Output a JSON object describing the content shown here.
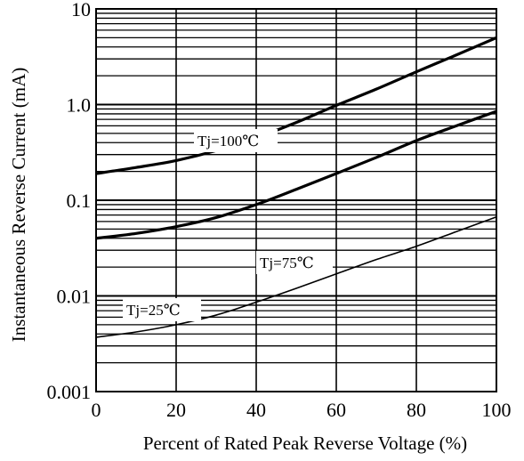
{
  "chart_data": {
    "type": "line",
    "title": "",
    "xlabel": "Percent of Rated Peak Reverse Voltage (%)",
    "ylabel": "Instantaneous Reverse Current (mA)",
    "x_scale": "linear",
    "y_scale": "log",
    "xlim": [
      0,
      100
    ],
    "ylim": [
      0.001,
      10
    ],
    "x_ticks": [
      0,
      20,
      40,
      60,
      80,
      100
    ],
    "x_tick_labels": [
      "0",
      "20",
      "40",
      "60",
      "80",
      "100"
    ],
    "y_ticks": [
      0.001,
      0.01,
      0.1,
      1,
      10
    ],
    "y_tick_labels": [
      "0.001",
      "0.01",
      "0.1",
      "1.0",
      "10"
    ],
    "grid": true,
    "line_color": "#000000",
    "series": [
      {
        "name": "Tj=100℃",
        "x": [
          0,
          10,
          20,
          30,
          40,
          50,
          60,
          70,
          80,
          90,
          100
        ],
        "y": [
          0.19,
          0.22,
          0.26,
          0.33,
          0.45,
          0.65,
          0.98,
          1.45,
          2.2,
          3.3,
          5.0
        ]
      },
      {
        "name": "Tj=75℃",
        "x": [
          0,
          10,
          20,
          30,
          40,
          50,
          60,
          70,
          80,
          90,
          100
        ],
        "y": [
          0.04,
          0.045,
          0.053,
          0.066,
          0.09,
          0.13,
          0.19,
          0.28,
          0.42,
          0.6,
          0.85
        ]
      },
      {
        "name": "Tj=25℃",
        "x": [
          0,
          10,
          20,
          30,
          40,
          50,
          60,
          70,
          80,
          90,
          100
        ],
        "y": [
          0.0037,
          0.0042,
          0.005,
          0.0063,
          0.0086,
          0.012,
          0.017,
          0.024,
          0.033,
          0.047,
          0.067
        ]
      }
    ]
  }
}
